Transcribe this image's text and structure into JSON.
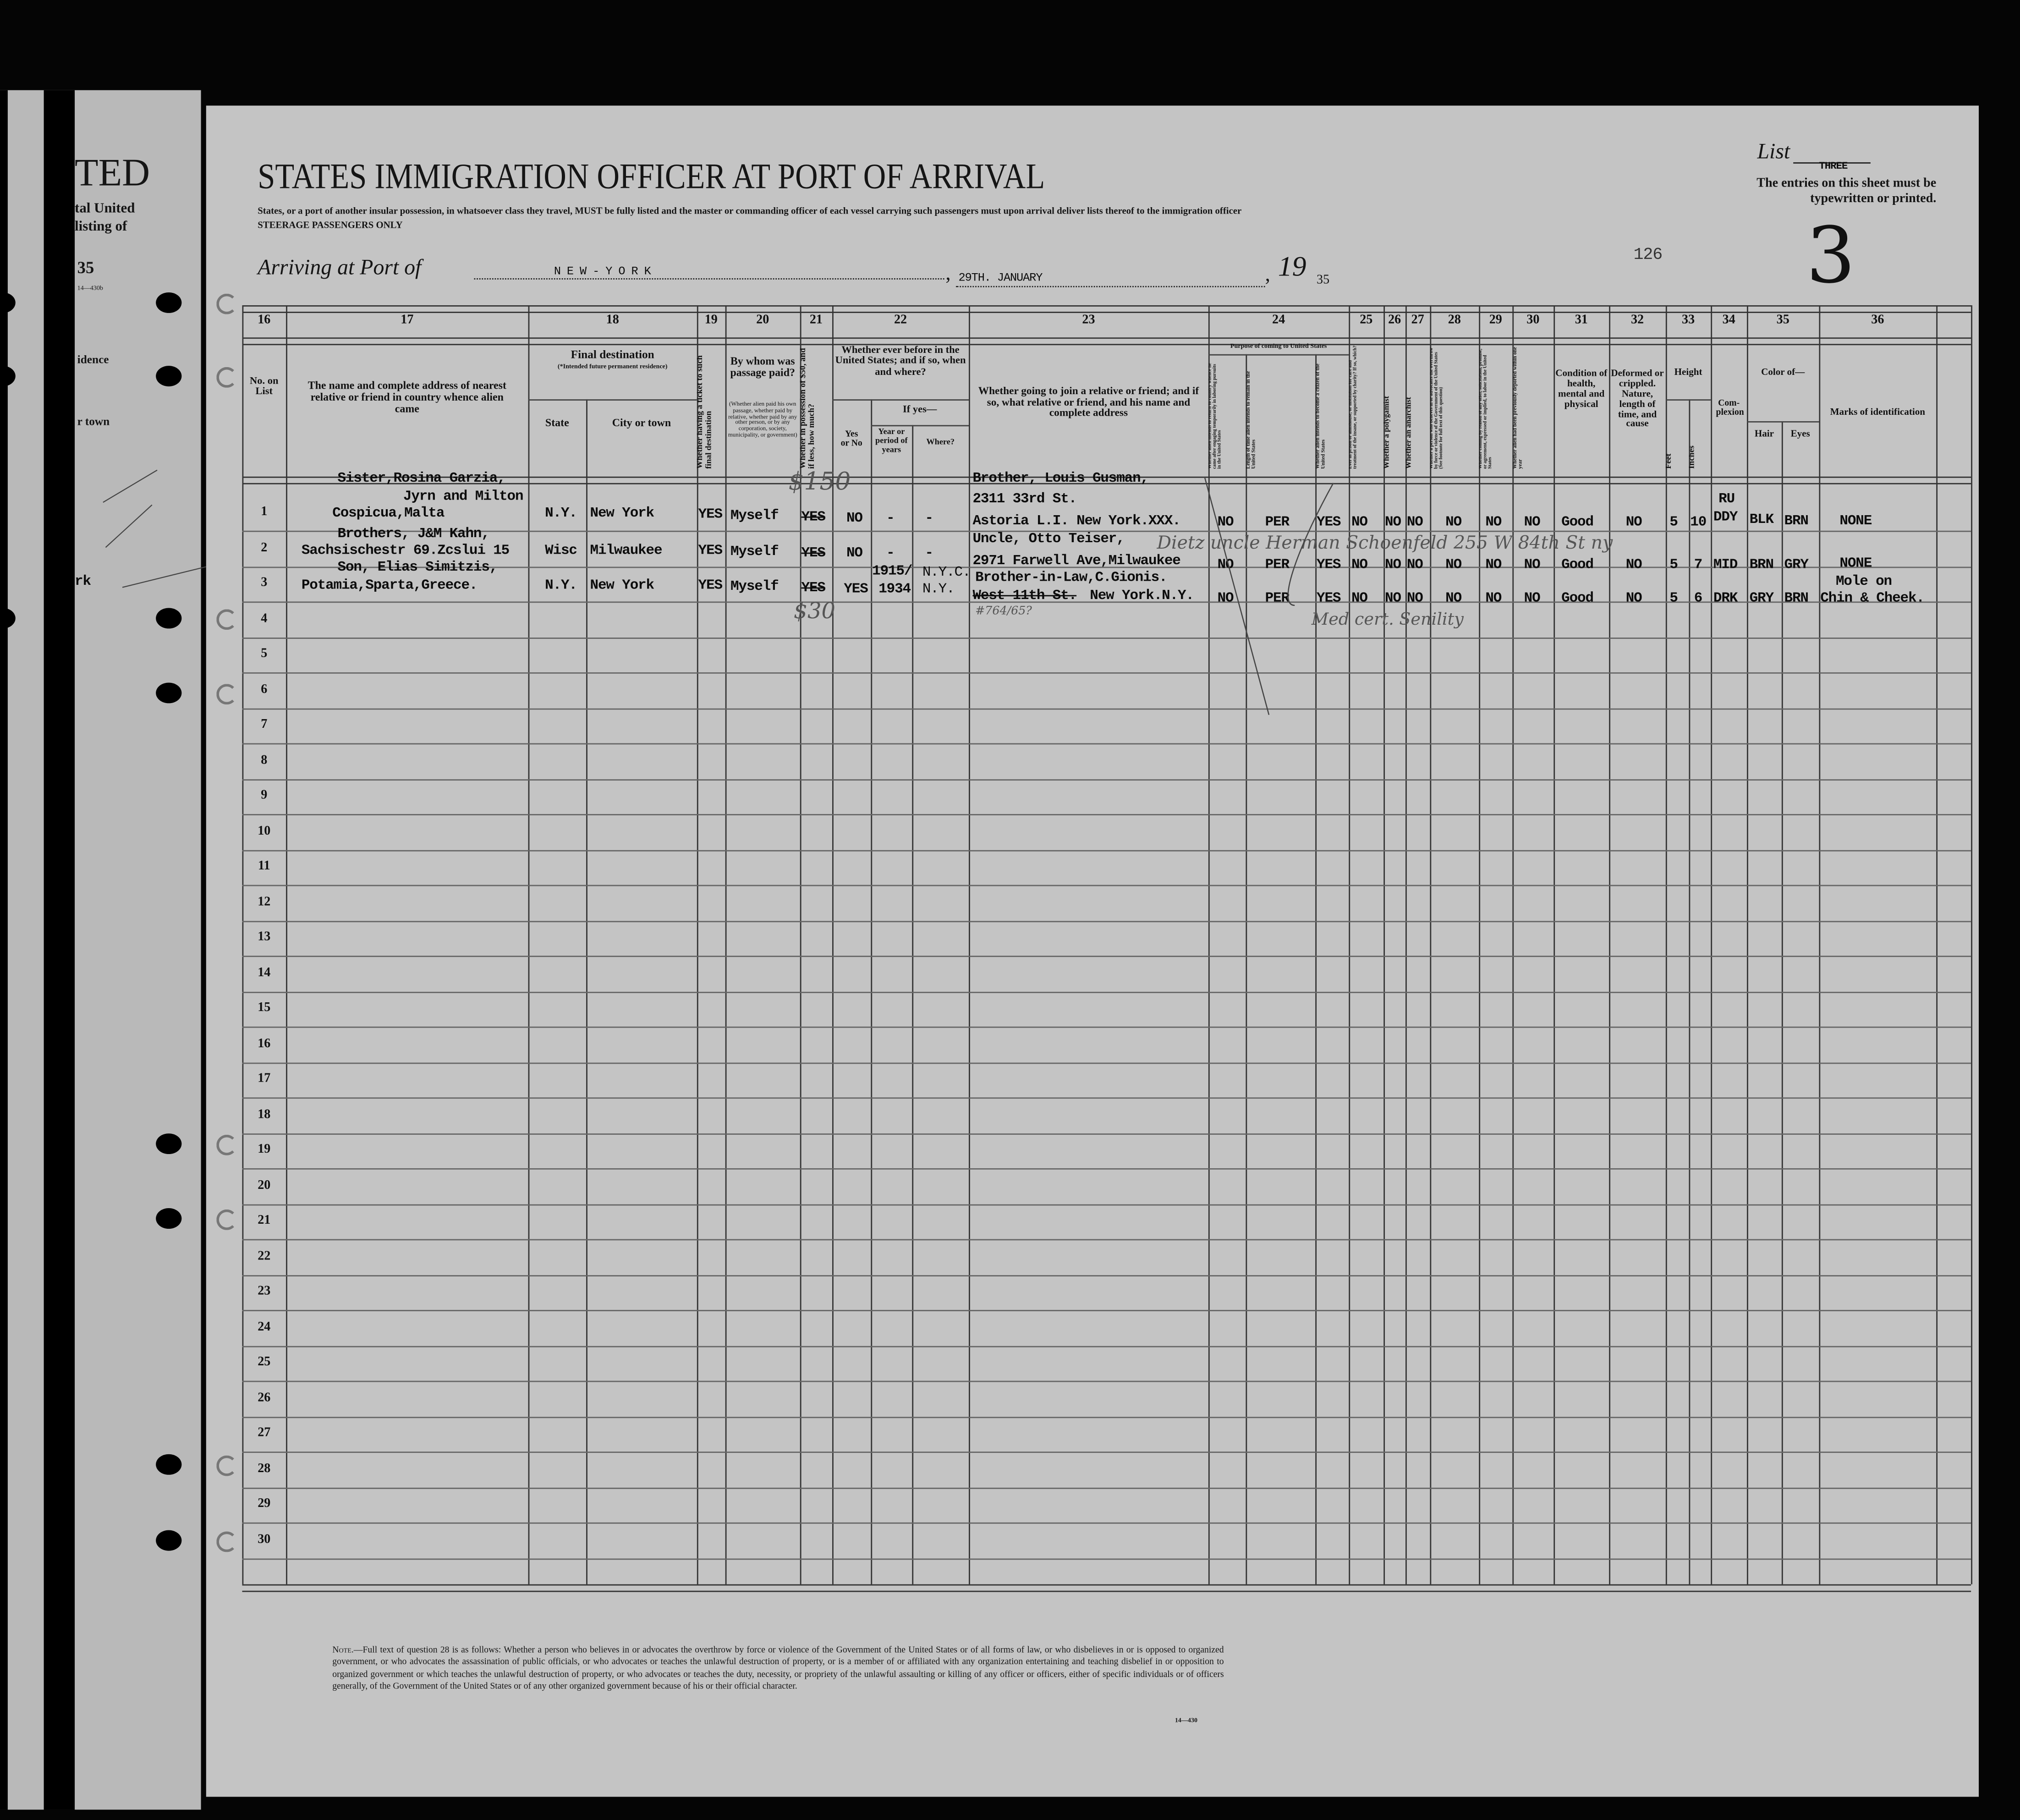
{
  "left_page": {
    "title_fragment": "TED",
    "line1": "tal United",
    "line2": "listing of",
    "year": "35",
    "form_no": "14—430b",
    "col_a": "idence",
    "col_b": "r town",
    "entry": "rk"
  },
  "header": {
    "title": "STATES IMMIGRATION OFFICER AT PORT OF ARRIVAL",
    "instruction": "States, or a port of another insular possession, in whatsoever class they travel, MUST be fully listed and the master or commanding officer of each vessel carrying such passengers must upon arrival deliver lists thereof to the immigration officer",
    "class": "STEERAGE PASSENGERS ONLY",
    "arriving_label": "Arriving at Port of",
    "port": "N E W - Y O R K",
    "date": "29TH. JANUARY",
    "year_prefix": "19",
    "year_suffix": "35",
    "list_label": "List",
    "list_value": "THREE",
    "entries_note": "The entries on this sheet must be typewritten or printed.",
    "stamp_number": "126",
    "sheet_number": "3"
  },
  "columns": {
    "numbers": [
      "16",
      "17",
      "18",
      "19",
      "20",
      "21",
      "22",
      "23",
      "24",
      "25",
      "26",
      "27",
      "28",
      "29",
      "30",
      "31",
      "32",
      "33",
      "34",
      "35",
      "36"
    ],
    "no_on_list": "No. on List",
    "relative": "The name and complete address of nearest relative or friend in country whence alien came",
    "final_destination": "Final destination",
    "final_destination_note": "(*Intended future permanent residence)",
    "state": "State",
    "city": "City or town",
    "ticket": "Whether having a ticket to such final destination",
    "paid_by": "By whom was passage paid?",
    "paid_by_note": "(Whether alien paid his own passage, whether paid by relative, whether paid by any other person, or by any corporation, society, municipality, or government)",
    "money": "Whether in possession of $50, and if less, how much?",
    "before": "Whether ever before in the United States; and if so, when and where?",
    "yes_or_no": "Yes or No",
    "if_yes": "If yes—",
    "year": "Year or period of years",
    "where": "Where?",
    "joining": "Whether going to join a relative or friend; and if so, what relative or friend, and his name and complete address",
    "purpose": "Purpose of coming to United States",
    "purpose_a": "Whether alien intends to return to country whence he came after engaging temporarily in laboring pursuits in the United States",
    "purpose_b": "Length of time alien intends to remain in the United States",
    "purpose_c": "Whether alien intends to become a citizen of the United States",
    "prison": "Ever in prison or almshouse, or institution for care and treatment of the insane, or supported by charity? If so, which?",
    "polygamist": "Whether a polygamist",
    "anarchist": "Whether an anarchist",
    "q28": "Whether a person who believes in or advocates the overthrow by force or violence of the Government of the United States (See footnote for full text of this question)",
    "q29": "Whether coming by reason of any offer, solicitation, promise, or agreement, expressed or implied, to labor in the United States",
    "deported": "Whether alien had been previously deported within one year",
    "health": "Condition of health, mental and physical",
    "deformed": "Deformed or crippled. Nature, length of time, and cause",
    "height": "Height",
    "feet": "Feet",
    "inches": "Inches",
    "complexion": "Com-plexion",
    "color_of": "Color of—",
    "hair": "Hair",
    "eyes": "Eyes",
    "marks": "Marks of identification"
  },
  "row_numbers": [
    "1",
    "2",
    "3",
    "4",
    "5",
    "6",
    "7",
    "8",
    "9",
    "10",
    "11",
    "12",
    "13",
    "14",
    "15",
    "16",
    "17",
    "18",
    "19",
    "20",
    "21",
    "22",
    "23",
    "24",
    "25",
    "26",
    "27",
    "28",
    "29",
    "30"
  ],
  "passengers": [
    {
      "relative": [
        "Sister,Rosina Garzia,",
        "Cospicua,Malta"
      ],
      "state": "N.Y.",
      "city": "New York",
      "ticket": "YES",
      "paid_by": "Myself",
      "money_struck": "YES",
      "money_handwritten": "$150",
      "before": "NO",
      "year": "-",
      "where": "-",
      "joining": [
        "Brother, Louis Gusman,",
        "2311 33rd St.",
        "Astoria L.I. New York.XXX."
      ],
      "purpose_a": "NO",
      "purpose_b": "PER",
      "purpose_c": "YES",
      "prison": "NO",
      "polygamist": "NO",
      "anarchist": "NO",
      "q28": "NO",
      "q29": "NO",
      "deported": "NO",
      "health": "Good",
      "deformed": "NO",
      "feet": "5",
      "inches": "10",
      "complexion": [
        "RU",
        "DDY"
      ],
      "hair": "BLK",
      "eyes": "BRN",
      "marks": [
        "NONE"
      ]
    },
    {
      "relative_insert": "Jyrn and Milton",
      "relative": [
        "Brothers, J&M Kahn,",
        "Sachsischestr 69.Zcslui 15"
      ],
      "state": "Wisc",
      "city": "Milwaukee",
      "ticket": "YES",
      "paid_by": "Myself",
      "money_struck": "YES",
      "before": "NO",
      "year": "-",
      "where": "-",
      "joining": [
        "Uncle, Otto Teiser,",
        "2971 Farwell Ave,Milwaukee"
      ],
      "purpose_a": "NO",
      "purpose_b": "PER",
      "purpose_c": "YES",
      "prison": "NO",
      "polygamist": "NO",
      "anarchist": "NO",
      "q28": "NO",
      "q29": "NO",
      "deported": "NO",
      "health": "Good",
      "deformed": "NO",
      "feet": "5",
      "inches": "7",
      "complexion": [
        "MID"
      ],
      "hair": "BRN",
      "eyes": "GRY",
      "marks": [
        "NONE"
      ]
    },
    {
      "relative": [
        "Son, Elias Simitzis,",
        "Potamia,Sparta,Greece."
      ],
      "state": "N.Y.",
      "city": "New York",
      "ticket": "YES",
      "paid_by": "Myself",
      "money_struck": "YES",
      "money_handwritten": "$30",
      "before": "YES",
      "year": [
        "1915/",
        "1934"
      ],
      "where": [
        "N.Y.C.",
        "N.Y."
      ],
      "joining": [
        "Brother-in-Law,C.Gionis."
      ],
      "joining_struck": "West 11th St.",
      "joining_rest": "New York.N.Y.",
      "joining_handwritten": "#764/65?",
      "purpose_a": "NO",
      "purpose_b": "PER",
      "purpose_c": "YES",
      "prison": "NO",
      "polygamist": "NO",
      "anarchist": "NO",
      "q28": "NO",
      "q29": "NO",
      "deported": "NO",
      "health": "Good",
      "deformed": "NO",
      "feet": "5",
      "inches": "6",
      "complexion": [
        "DRK"
      ],
      "hair": "GRY",
      "eyes": "BRN",
      "marks": [
        "Mole on",
        "Chin & Cheek."
      ]
    }
  ],
  "annotations": {
    "row2_handwritten": "Dietz uncle Herman Schoenfeld 255 W 84th St ny",
    "row3_handwritten": "Med cert. Senility"
  },
  "footer": {
    "note_label": "Note.",
    "note": "—Full text of question 28 is as follows: Whether a person who believes in or advocates the overthrow by force or violence of the Government of the United States or of all forms of law, or who disbelieves in or is opposed to organized government, or who advocates the assassination of public officials, or who advocates or teaches the unlawful destruction of property, or is a member of or affiliated with any organization entertaining and teaching disbelief in or opposition to organized government or which teaches the unlawful destruction of property, or who advocates or teaches the duty, necessity, or propriety of the unlawful assaulting or killing of any officer or officers, either of specific individuals or of officers generally, of the Government of the United States or of any other organized government because of his or their official character.",
    "form_no": "14—430"
  }
}
